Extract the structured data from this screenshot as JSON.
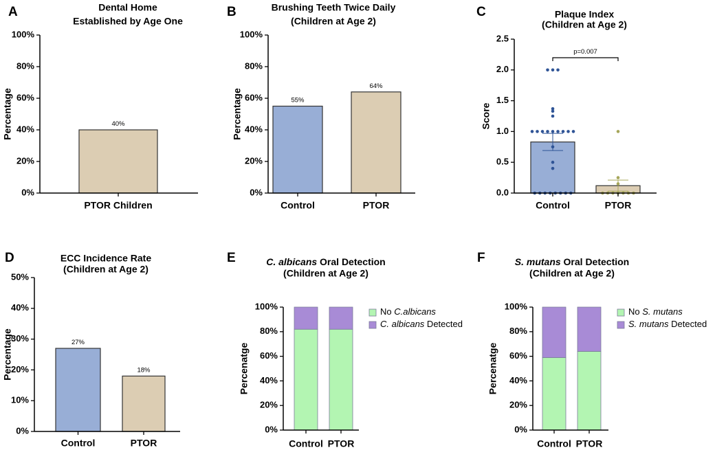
{
  "colors": {
    "control_bar": "#98aed6",
    "ptor_bar": "#dccdb3",
    "bar_edge": "#333333",
    "control_dot": "#2f5496",
    "ptor_dot": "#a6a65a",
    "no_detect": "#b3f5b2",
    "detected": "#a88bd6"
  },
  "chart_data": [
    {
      "panel": "A",
      "type": "bar",
      "title": [
        "Dental Home",
        "Established by Age One"
      ],
      "ylabel": "Percentage",
      "ylim": [
        0,
        100
      ],
      "yticks": [
        "0%",
        "20%",
        "40%",
        "60%",
        "80%",
        "100%"
      ],
      "categories": [
        "PTOR Children"
      ],
      "values": [
        40
      ],
      "labels": [
        "40%"
      ],
      "colors": [
        "ptor_bar"
      ]
    },
    {
      "panel": "B",
      "type": "bar",
      "title": [
        "Brushing Teeth Twice Daily",
        "(Children at Age 2)"
      ],
      "ylabel": "Percentage",
      "ylim": [
        0,
        100
      ],
      "yticks": [
        "0%",
        "20%",
        "40%",
        "60%",
        "80%",
        "100%"
      ],
      "categories": [
        "Control",
        "PTOR"
      ],
      "values": [
        55,
        64
      ],
      "labels": [
        "55%",
        "64%"
      ],
      "colors": [
        "control_bar",
        "ptor_bar"
      ]
    },
    {
      "panel": "C",
      "type": "bar",
      "title": [
        "Plaque Index",
        "(Children at Age 2)"
      ],
      "ylabel": "Score",
      "ylim": [
        0,
        2.5
      ],
      "yticks": [
        "0.0",
        "0.5",
        "1.0",
        "1.5",
        "2.0",
        "2.5"
      ],
      "categories": [
        "Control",
        "PTOR"
      ],
      "values": [
        0.83,
        0.12
      ],
      "errors": [
        0.14,
        0.09
      ],
      "colors": [
        "control_bar",
        "ptor_bar"
      ],
      "points": [
        [
          2.0,
          2.0,
          2.0,
          1.37,
          1.33,
          1.25,
          1.0,
          1.0,
          1.0,
          1.0,
          1.0,
          1.0,
          1.0,
          1.0,
          1.0,
          0.75,
          0.5,
          0.4,
          0,
          0,
          0,
          0,
          0,
          0,
          0,
          0
        ],
        [
          1.0,
          0.25,
          0.15,
          0,
          0,
          0,
          0,
          0,
          0,
          0
        ]
      ],
      "significance": {
        "pairs": [
          "Control",
          "PTOR"
        ],
        "label": "p=0.007"
      }
    },
    {
      "panel": "D",
      "type": "bar",
      "title": [
        "ECC Incidence Rate",
        "(Children at Age 2)"
      ],
      "ylabel": "Percentage",
      "ylim": [
        0,
        50
      ],
      "yticks": [
        "0%",
        "10%",
        "20%",
        "30%",
        "40%",
        "50%"
      ],
      "categories": [
        "Control",
        "PTOR"
      ],
      "values": [
        27,
        18
      ],
      "labels": [
        "27%",
        "18%"
      ],
      "colors": [
        "control_bar",
        "ptor_bar"
      ]
    },
    {
      "panel": "E",
      "type": "stacked-bar",
      "title_prefix": "C. albicans",
      "title_suffix": " Oral Detection",
      "title2": "(Children at Age 2)",
      "ylabel": "Percenatge",
      "ylim": [
        0,
        100
      ],
      "yticks": [
        "0%",
        "20%",
        "40%",
        "60%",
        "80%",
        "100%"
      ],
      "categories": [
        "Control",
        "PTOR"
      ],
      "series": [
        {
          "name": "No C.albicans",
          "legend_plain": "No ",
          "legend_italic": "C.albicans",
          "color": "no_detect",
          "values": [
            82,
            82
          ]
        },
        {
          "name": "C. albicans Detected",
          "legend_italic": "C. albicans",
          "legend_plain": " Detected",
          "color": "detected",
          "values": [
            18,
            18
          ]
        }
      ],
      "legend_position": "top-right"
    },
    {
      "panel": "F",
      "type": "stacked-bar",
      "title_prefix": "S. mutans",
      "title_suffix": " Oral Detection",
      "title2": "(Children at Age 2)",
      "ylabel": "Percenatge",
      "ylim": [
        0,
        100
      ],
      "yticks": [
        "0%",
        "20%",
        "40%",
        "60%",
        "80%",
        "100%"
      ],
      "categories": [
        "Control",
        "PTOR"
      ],
      "series": [
        {
          "name": "No S. mutans",
          "legend_plain": "No ",
          "legend_italic": "S. mutans",
          "color": "no_detect",
          "values": [
            59,
            64
          ]
        },
        {
          "name": "S. mutans Detected",
          "legend_italic": "S. mutans",
          "legend_plain": " Detected",
          "color": "detected",
          "values": [
            41,
            36
          ]
        }
      ],
      "legend_position": "top-right"
    }
  ]
}
